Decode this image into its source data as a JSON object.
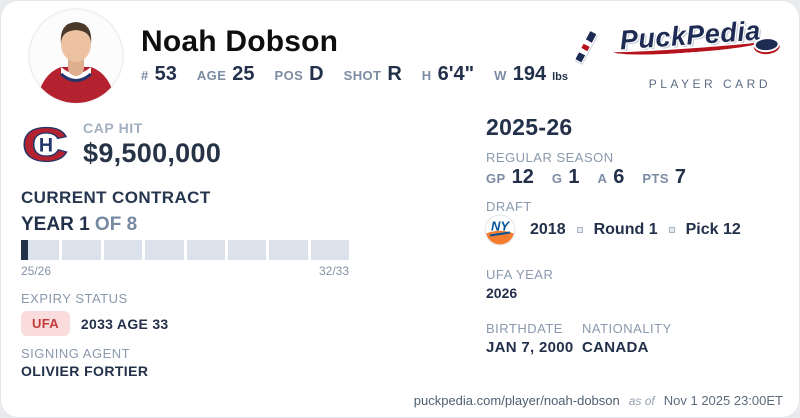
{
  "header": {
    "player_name": "Noah Dobson",
    "stats": [
      {
        "label": "#",
        "value": "53"
      },
      {
        "label": "AGE",
        "value": "25"
      },
      {
        "label": "POS",
        "value": "D"
      },
      {
        "label": "SHOT",
        "value": "R"
      },
      {
        "label": "H",
        "value": "6'4\""
      },
      {
        "label": "W",
        "value": "194",
        "suffix": "lbs"
      }
    ],
    "brand": {
      "logo_text": "PuckPedia",
      "subtitle": "PLAYER CARD"
    }
  },
  "cap_hit": {
    "label": "CAP HIT",
    "value": "$9,500,000"
  },
  "contract": {
    "section_title": "CURRENT CONTRACT",
    "year_label": "YEAR 1",
    "of_label": "OF 8",
    "total_years": 8,
    "current_year": 1,
    "start_label": "25/26",
    "end_label": "32/33",
    "expiry": {
      "label": "EXPIRY STATUS",
      "badge": "UFA",
      "detail": "2033 AGE 33"
    },
    "agent": {
      "label": "SIGNING AGENT",
      "name": "OLIVIER FORTIER"
    }
  },
  "season": {
    "title": "2025-26",
    "label": "REGULAR SEASON",
    "stats": [
      {
        "label": "GP",
        "value": "12"
      },
      {
        "label": "G",
        "value": "1"
      },
      {
        "label": "A",
        "value": "6"
      },
      {
        "label": "PTS",
        "value": "7"
      }
    ]
  },
  "draft": {
    "label": "DRAFT",
    "year": "2018",
    "round": "Round 1",
    "pick": "Pick 12"
  },
  "ufa_year": {
    "label": "UFA YEAR",
    "value": "2026"
  },
  "birthdate": {
    "label": "BIRTHDATE",
    "value": "JAN 7, 2000"
  },
  "nationality": {
    "label": "NATIONALITY",
    "value": "CANADA"
  },
  "footer": {
    "url": "puckpedia.com/player/noah-dobson",
    "as_of_label": "as of",
    "timestamp": "Nov 1 2025 23:00ET"
  },
  "colors": {
    "navy_text": "#22304a",
    "label_gray": "#8a99ad",
    "badge_red_text": "#c23b3b",
    "badge_red_bg": "#fadcdc",
    "bar_segment": "#dbe2ec",
    "canadiens_red": "#b3222e",
    "canadiens_blue": "#24356e",
    "islanders_blue": "#00539b",
    "islanders_orange": "#f47d30",
    "brand_navy": "#1e2b52",
    "brand_red": "#b5121b"
  }
}
